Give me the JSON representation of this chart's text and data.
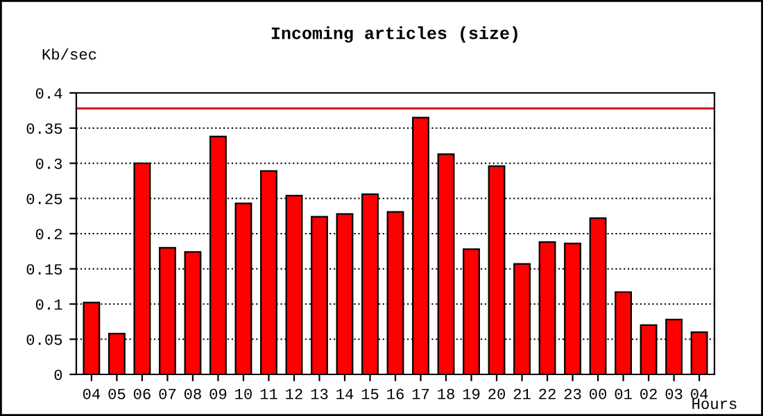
{
  "chart_data": {
    "type": "bar",
    "title": "Incoming articles (size)",
    "ylabel": "Kb/sec",
    "xlabel": "Hours",
    "categories": [
      "04",
      "05",
      "06",
      "07",
      "08",
      "09",
      "10",
      "11",
      "12",
      "13",
      "14",
      "15",
      "16",
      "17",
      "18",
      "19",
      "20",
      "21",
      "22",
      "23",
      "00",
      "01",
      "02",
      "03",
      "04"
    ],
    "values": [
      0.102,
      0.058,
      0.3,
      0.18,
      0.174,
      0.338,
      0.243,
      0.289,
      0.254,
      0.224,
      0.228,
      0.256,
      0.231,
      0.365,
      0.313,
      0.178,
      0.296,
      0.157,
      0.188,
      0.186,
      0.222,
      0.117,
      0.07,
      0.078,
      0.06
    ],
    "color": "#ff0000",
    "ylim": [
      0,
      0.4
    ],
    "yticks": [
      0,
      0.05,
      0.1,
      0.15,
      0.2,
      0.25,
      0.3,
      0.35,
      0.4
    ],
    "ref_lines": [
      {
        "axis": "y",
        "value": 0.378,
        "color": "#cc0000",
        "line_style": "solid"
      }
    ],
    "grid": "y",
    "line_style": "dotted"
  }
}
